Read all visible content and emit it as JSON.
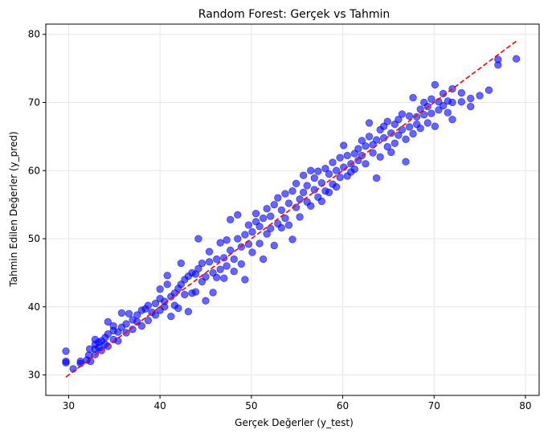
{
  "chart_data": {
    "type": "scatter",
    "title": "Random Forest: Gerçek vs Tahmin",
    "xlabel": "Gerçek Değerler (y_test)",
    "ylabel": "Tahmin Edilen Değerler (y_pred)",
    "xlim": [
      27.5,
      81.5
    ],
    "ylim": [
      27,
      81.5
    ],
    "xticks": [
      30,
      40,
      50,
      60,
      70,
      80
    ],
    "yticks": [
      30,
      40,
      50,
      60,
      70,
      80
    ],
    "grid": true,
    "series": [
      {
        "color": "#0000ff",
        "opacity": 0.6,
        "points": [
          [
            29.7,
            33.5
          ],
          [
            29.7,
            32.0
          ],
          [
            29.7,
            31.8
          ],
          [
            30.5,
            30.9
          ],
          [
            31.3,
            31.7
          ],
          [
            31.3,
            32.0
          ],
          [
            32.0,
            32.2
          ],
          [
            32.2,
            32.9
          ],
          [
            32.3,
            33.8
          ],
          [
            32.4,
            32.0
          ],
          [
            32.9,
            33.0
          ],
          [
            32.9,
            33.8
          ],
          [
            32.9,
            34.5
          ],
          [
            32.9,
            35.2
          ],
          [
            33.3,
            34.0
          ],
          [
            33.3,
            34.8
          ],
          [
            33.6,
            33.6
          ],
          [
            33.6,
            35.0
          ],
          [
            34.0,
            34.5
          ],
          [
            34.0,
            35.5
          ],
          [
            34.3,
            36.0
          ],
          [
            34.3,
            37.8
          ],
          [
            34.3,
            34.2
          ],
          [
            34.9,
            35.2
          ],
          [
            34.9,
            36.5
          ],
          [
            34.9,
            37.2
          ],
          [
            35.4,
            35.0
          ],
          [
            35.4,
            36.3
          ],
          [
            35.8,
            37.0
          ],
          [
            35.8,
            39.1
          ],
          [
            36.3,
            36.2
          ],
          [
            36.3,
            37.5
          ],
          [
            36.6,
            39.0
          ],
          [
            37.0,
            36.7
          ],
          [
            37.0,
            38.1
          ],
          [
            37.5,
            37.8
          ],
          [
            37.5,
            38.8
          ],
          [
            38.0,
            37.2
          ],
          [
            38.0,
            39.5
          ],
          [
            38.4,
            39.7
          ],
          [
            38.7,
            38.0
          ],
          [
            38.7,
            40.2
          ],
          [
            39.1,
            39.2
          ],
          [
            39.5,
            40.5
          ],
          [
            39.5,
            38.8
          ],
          [
            40.0,
            39.5
          ],
          [
            40.0,
            41.2
          ],
          [
            40.0,
            42.6
          ],
          [
            40.5,
            40.0
          ],
          [
            40.5,
            40.8
          ],
          [
            40.8,
            44.6
          ],
          [
            40.8,
            43.3
          ],
          [
            41.2,
            41.5
          ],
          [
            41.2,
            38.6
          ],
          [
            41.6,
            42.0
          ],
          [
            41.6,
            40.2
          ],
          [
            42.0,
            42.7
          ],
          [
            42.0,
            39.8
          ],
          [
            42.3,
            43.3
          ],
          [
            42.3,
            46.4
          ],
          [
            42.7,
            41.8
          ],
          [
            42.7,
            44.0
          ],
          [
            43.1,
            39.3
          ],
          [
            43.1,
            44.5
          ],
          [
            43.5,
            42.0
          ],
          [
            43.5,
            45.0
          ],
          [
            43.9,
            44.8
          ],
          [
            43.9,
            42.2
          ],
          [
            44.2,
            50.0
          ],
          [
            44.2,
            45.6
          ],
          [
            44.6,
            43.7
          ],
          [
            44.6,
            46.4
          ],
          [
            45.0,
            40.9
          ],
          [
            45.0,
            44.4
          ],
          [
            45.4,
            46.6
          ],
          [
            45.4,
            48.1
          ],
          [
            45.8,
            45.0
          ],
          [
            45.8,
            42.1
          ],
          [
            46.2,
            47.0
          ],
          [
            46.2,
            44.3
          ],
          [
            46.6,
            49.4
          ],
          [
            46.6,
            45.5
          ],
          [
            47.0,
            47.2
          ],
          [
            47.0,
            44.2
          ],
          [
            47.3,
            49.8
          ],
          [
            47.3,
            46.0
          ],
          [
            47.7,
            48.3
          ],
          [
            47.7,
            52.8
          ],
          [
            48.1,
            47.0
          ],
          [
            48.1,
            45.2
          ],
          [
            48.5,
            50.0
          ],
          [
            48.5,
            53.5
          ],
          [
            48.9,
            48.8
          ],
          [
            48.9,
            46.3
          ],
          [
            49.3,
            50.6
          ],
          [
            49.3,
            44.0
          ],
          [
            49.7,
            52.0
          ],
          [
            49.7,
            49.2
          ],
          [
            50.1,
            51.0
          ],
          [
            50.1,
            48.0
          ],
          [
            50.5,
            52.5
          ],
          [
            50.5,
            53.7
          ],
          [
            50.9,
            49.3
          ],
          [
            50.9,
            51.8
          ],
          [
            51.3,
            53.0
          ],
          [
            51.3,
            47.0
          ],
          [
            51.7,
            54.4
          ],
          [
            51.7,
            50.7
          ],
          [
            52.1,
            51.5
          ],
          [
            52.1,
            53.3
          ],
          [
            52.5,
            55.0
          ],
          [
            52.5,
            49.0
          ],
          [
            52.9,
            52.2
          ],
          [
            52.9,
            56.0
          ],
          [
            53.3,
            54.2
          ],
          [
            53.3,
            51.6
          ],
          [
            53.7,
            56.6
          ],
          [
            53.7,
            53.0
          ],
          [
            54.1,
            55.2
          ],
          [
            54.1,
            52.0
          ],
          [
            54.5,
            57.0
          ],
          [
            54.5,
            49.9
          ],
          [
            54.9,
            54.6
          ],
          [
            54.9,
            58.1
          ],
          [
            55.3,
            55.8
          ],
          [
            55.3,
            53.2
          ],
          [
            55.7,
            59.3
          ],
          [
            55.7,
            56.8
          ],
          [
            56.1,
            55.4
          ],
          [
            56.1,
            57.8
          ],
          [
            56.5,
            60.0
          ],
          [
            56.5,
            54.8
          ],
          [
            56.9,
            57.2
          ],
          [
            56.9,
            58.9
          ],
          [
            57.3,
            56.1
          ],
          [
            57.3,
            59.9
          ],
          [
            57.7,
            58.2
          ],
          [
            57.7,
            55.5
          ],
          [
            58.1,
            60.3
          ],
          [
            58.1,
            57.0
          ],
          [
            58.5,
            59.5
          ],
          [
            58.5,
            56.8
          ],
          [
            58.9,
            61.2
          ],
          [
            58.9,
            58.0
          ],
          [
            59.3,
            60.0
          ],
          [
            59.3,
            57.6
          ],
          [
            59.7,
            61.9
          ],
          [
            59.7,
            59.0
          ],
          [
            60.1,
            63.7
          ],
          [
            60.1,
            60.5
          ],
          [
            60.5,
            59.2
          ],
          [
            60.5,
            62.2
          ],
          [
            60.9,
            61.0
          ],
          [
            60.9,
            59.8
          ],
          [
            61.3,
            62.5
          ],
          [
            61.3,
            60.2
          ],
          [
            61.7,
            63.2
          ],
          [
            61.7,
            61.5
          ],
          [
            62.1,
            64.4
          ],
          [
            62.1,
            62.2
          ],
          [
            62.5,
            63.6
          ],
          [
            62.5,
            61.0
          ],
          [
            62.9,
            67.0
          ],
          [
            62.9,
            65.0
          ],
          [
            63.3,
            63.8
          ],
          [
            63.3,
            62.6
          ],
          [
            63.7,
            58.9
          ],
          [
            63.7,
            64.5
          ],
          [
            64.1,
            66.0
          ],
          [
            64.1,
            62.0
          ],
          [
            64.5,
            64.8
          ],
          [
            64.5,
            66.5
          ],
          [
            64.9,
            63.5
          ],
          [
            64.9,
            67.2
          ],
          [
            65.3,
            65.5
          ],
          [
            65.3,
            62.7
          ],
          [
            65.7,
            66.8
          ],
          [
            65.7,
            64.0
          ],
          [
            66.1,
            67.5
          ],
          [
            66.1,
            65.2
          ],
          [
            66.5,
            66.0
          ],
          [
            66.5,
            68.3
          ],
          [
            66.9,
            64.6
          ],
          [
            66.9,
            61.3
          ],
          [
            67.3,
            68.0
          ],
          [
            67.3,
            66.4
          ],
          [
            67.7,
            70.7
          ],
          [
            67.7,
            65.4
          ],
          [
            68.1,
            67.9
          ],
          [
            68.1,
            66.8
          ],
          [
            68.5,
            69.0
          ],
          [
            68.5,
            66.2
          ],
          [
            68.9,
            70.0
          ],
          [
            68.9,
            68.2
          ],
          [
            69.3,
            69.4
          ],
          [
            69.3,
            67.0
          ],
          [
            69.7,
            70.5
          ],
          [
            69.7,
            68.4
          ],
          [
            70.1,
            72.6
          ],
          [
            70.1,
            66.5
          ],
          [
            70.5,
            70.1
          ],
          [
            70.5,
            68.9
          ],
          [
            71.0,
            69.5
          ],
          [
            71.0,
            71.3
          ],
          [
            71.5,
            70.2
          ],
          [
            71.5,
            68.5
          ],
          [
            72.0,
            72.0
          ],
          [
            72.0,
            70.0
          ],
          [
            72.0,
            67.5
          ],
          [
            73.0,
            71.4
          ],
          [
            73.0,
            70.1
          ],
          [
            74.0,
            69.4
          ],
          [
            74.0,
            70.6
          ],
          [
            75.0,
            71.0
          ],
          [
            76.0,
            71.8
          ],
          [
            77.0,
            76.3
          ],
          [
            77.0,
            75.5
          ],
          [
            79.0,
            76.4
          ]
        ]
      }
    ],
    "reference_line": {
      "from": [
        29.7,
        29.7
      ],
      "to": [
        79.0,
        79.0
      ],
      "color": "#ff0000",
      "style": "dashed"
    }
  }
}
